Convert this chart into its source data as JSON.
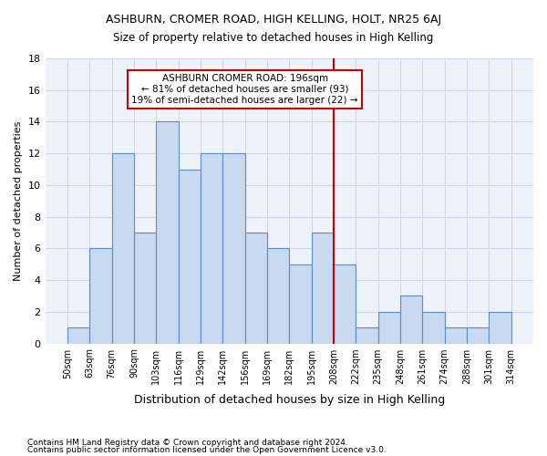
{
  "title1": "ASHBURN, CROMER ROAD, HIGH KELLING, HOLT, NR25 6AJ",
  "title2": "Size of property relative to detached houses in High Kelling",
  "xlabel": "Distribution of detached houses by size in High Kelling",
  "ylabel": "Number of detached properties",
  "footnote1": "Contains HM Land Registry data © Crown copyright and database right 2024.",
  "footnote2": "Contains public sector information licensed under the Open Government Licence v3.0.",
  "bin_labels": [
    "50sqm",
    "63sqm",
    "76sqm",
    "90sqm",
    "103sqm",
    "116sqm",
    "129sqm",
    "142sqm",
    "156sqm",
    "169sqm",
    "182sqm",
    "195sqm",
    "208sqm",
    "222sqm",
    "235sqm",
    "248sqm",
    "261sqm",
    "274sqm",
    "288sqm",
    "301sqm",
    "314sqm"
  ],
  "bar_values": [
    1,
    6,
    12,
    7,
    14,
    11,
    12,
    12,
    7,
    6,
    5,
    7,
    5,
    1,
    2,
    3,
    2,
    1,
    1,
    2
  ],
  "bar_color": "#c9d9f0",
  "bar_edge_color": "#5b8ccc",
  "grid_color": "#d0d8e8",
  "bg_color": "#eef2f9",
  "red_line_x": 195,
  "annotation_title": "ASHBURN CROMER ROAD: 196sqm",
  "annotation_line2": "← 81% of detached houses are smaller (93)",
  "annotation_line3": "19% of semi-detached houses are larger (22) →",
  "annotation_box_color": "#ffffff",
  "annotation_border_color": "#cc0000",
  "ylim": [
    0,
    18
  ],
  "yticks": [
    0,
    2,
    4,
    6,
    8,
    10,
    12,
    14,
    16,
    18
  ]
}
